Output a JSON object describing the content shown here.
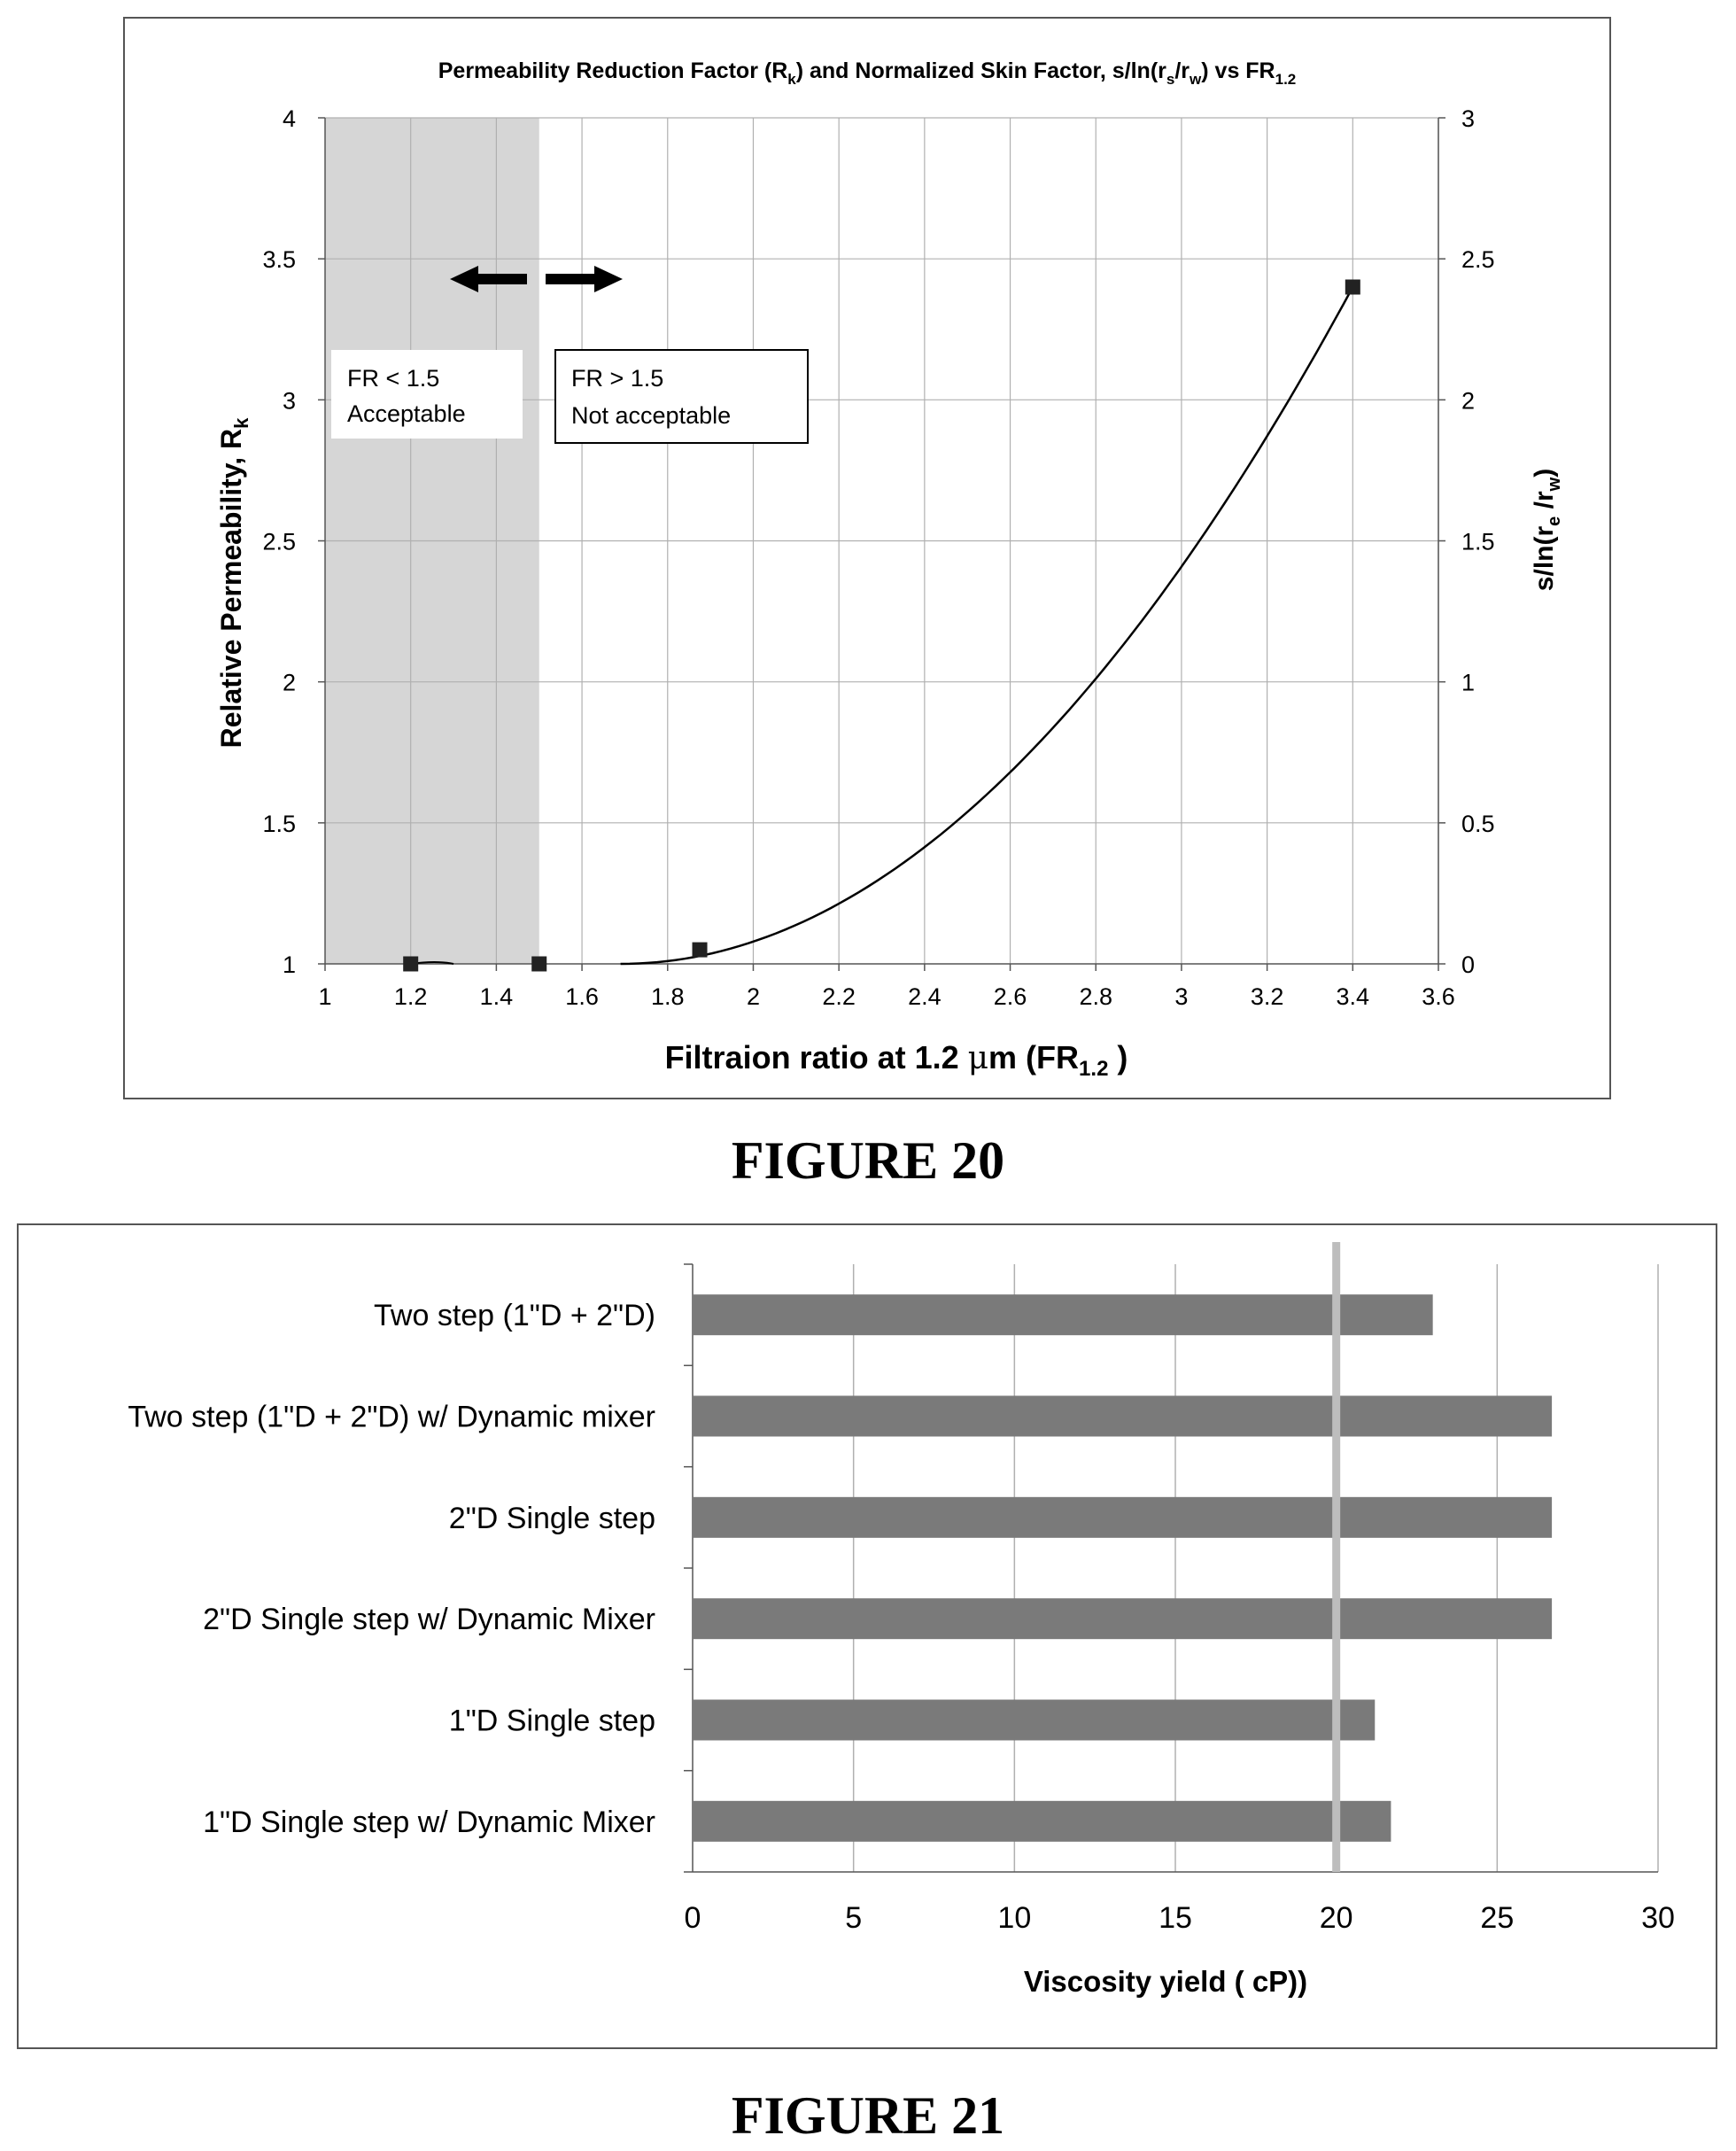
{
  "figure20": {
    "caption": "FIGURE 20",
    "chart_data": {
      "type": "scatter",
      "title_parts": [
        "Permeability Reduction Factor (R",
        "k",
        ") and Normalized Skin Factor, s/ln(r",
        "s",
        "/r",
        "w",
        ") vs FR",
        "1.2"
      ],
      "xlabel_parts": [
        "Filtraion ratio at 1.2 ",
        "μ",
        "m (FR",
        "1.2",
        " )"
      ],
      "ylabel_parts": [
        "Relative Permeability, R",
        "k"
      ],
      "y2label_parts": [
        "s/ln(r",
        "e",
        " /r",
        "w",
        ")"
      ],
      "xlim": [
        1,
        3.6
      ],
      "ylim": [
        1,
        4
      ],
      "y2lim": [
        0,
        3
      ],
      "x_ticks": [
        "1",
        "1.2",
        "1.4",
        "1.6",
        "1.8",
        "2",
        "2.2",
        "2.4",
        "2.6",
        "2.8",
        "3",
        "3.2",
        "3.4",
        "3.6"
      ],
      "y_ticks": [
        "1",
        "1.5",
        "2",
        "2.5",
        "3",
        "3.5",
        "4"
      ],
      "y2_ticks": [
        "0",
        "0.5",
        "1",
        "1.5",
        "2",
        "2.5",
        "3"
      ],
      "grid": true,
      "shaded_region": {
        "x": [
          1,
          1.5
        ]
      },
      "points": [
        {
          "x": 1.2,
          "y": 1.0
        },
        {
          "x": 1.5,
          "y": 1.0
        },
        {
          "x": 1.875,
          "y": 1.05
        },
        {
          "x": 3.4,
          "y": 3.4
        }
      ],
      "trendline": {
        "type": "quadratic",
        "from_x": 1.69,
        "to_x": 3.4
      },
      "annotations": {
        "left_box": [
          "FR < 1.5",
          "Acceptable"
        ],
        "right_box": [
          "FR > 1.5",
          "Not acceptable"
        ]
      }
    }
  },
  "figure21": {
    "caption": "FIGURE 21",
    "chart_data": {
      "type": "bar",
      "orientation": "horizontal",
      "categories": [
        "Two step (1\"D + 2\"D)",
        "Two step (1\"D + 2\"D) w/ Dynamic mixer",
        "2\"D Single step",
        "2\"D Single step w/ Dynamic Mixer",
        "1\"D Single step",
        "1\"D Single step w/ Dynamic Mixer"
      ],
      "values": [
        23.0,
        26.7,
        26.7,
        26.7,
        21.2,
        21.7
      ],
      "xlabel": "Viscosity yield ( cP))",
      "xlim": [
        0,
        30
      ],
      "x_ticks": [
        "0",
        "5",
        "10",
        "15",
        "20",
        "25",
        "30"
      ],
      "reference_line": 20,
      "grid": true
    }
  },
  "colors": {
    "shade": "#d6d6d6",
    "bar": "#7a7a7a",
    "grid": "#b0b0b0",
    "reference_line": "#bdbdbd",
    "marker": "#222222"
  }
}
